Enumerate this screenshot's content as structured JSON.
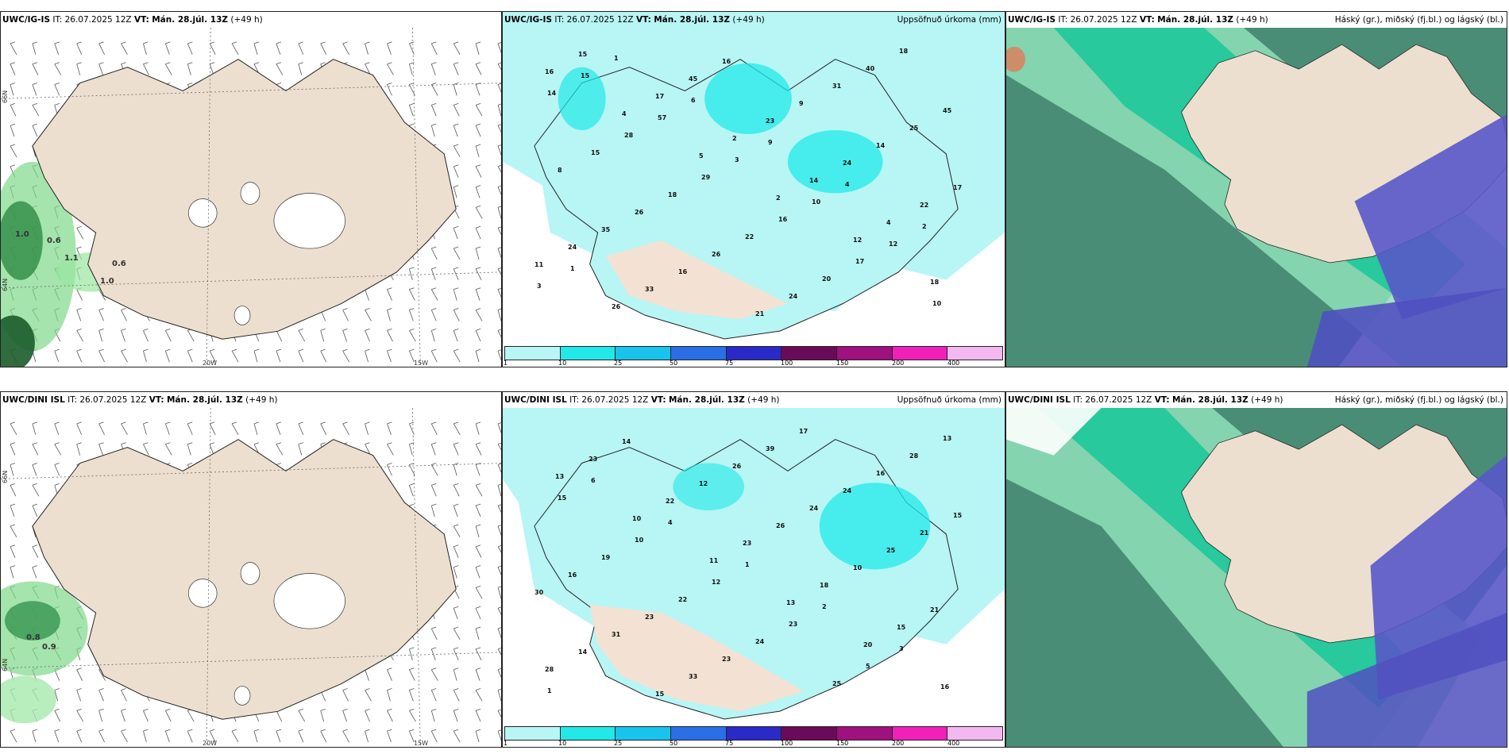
{
  "rows": [
    {
      "wind_title_model": "UWC/IG-IS",
      "precip_title_model": "UWC/IG-IS",
      "cloud_title_model": "UWC/IG-IS",
      "it": "IT: 26.07.2025 12Z",
      "vt_label": "VT:",
      "vt": "Mán. 28.júl. 13Z",
      "lead": "(+49 h)",
      "wind_values": [
        "1.0",
        "0.6",
        "1.1",
        "0.6",
        "1.0"
      ]
    },
    {
      "wind_title_model": "UWC/DINI ISL",
      "precip_title_model": "UWC/DINI ISL",
      "cloud_title_model": "UWC/DINI ISL",
      "it": "IT: 26.07.2025 12Z",
      "vt_label": "VT:",
      "vt": "Mán. 28.júl. 13Z",
      "lead": "(+49 h)",
      "wind_values": [
        "0.8",
        "0.9"
      ]
    }
  ],
  "precip_label": "Uppsöfnuð úrkoma (mm)",
  "cloud_label": "Háský (gr.), miðský (fj.bl.) og lágský (bl.)",
  "axis": {
    "lat_66": "66N",
    "lat_64": "64N",
    "lon_20": "20W",
    "lon_15": "15W"
  },
  "colorbar": {
    "ticks": [
      "1",
      "10",
      "25",
      "50",
      "75",
      "100",
      "150",
      "200",
      "400"
    ],
    "colors": [
      "#b8f5f5",
      "#22e8e8",
      "#18c4ec",
      "#2a6ee8",
      "#2a2ac8",
      "#6a0a5a",
      "#a0107e",
      "#f020b8",
      "#f4b8f0"
    ]
  },
  "precip_values_top": [
    "16",
    "4",
    "5",
    "2",
    "12",
    "18",
    "15",
    "17",
    "2",
    "14",
    "4",
    "11",
    "26",
    "45",
    "23",
    "24",
    "22",
    "24",
    "33",
    "16",
    "9",
    "14",
    "17",
    "35",
    "16",
    "21",
    "31",
    "25",
    "8",
    "26",
    "26",
    "24",
    "40",
    "45",
    "15",
    "18",
    "22",
    "20",
    "18",
    "14",
    "28",
    "29",
    "16",
    "17",
    "10",
    "15",
    "57",
    "3",
    "10",
    "12",
    "3",
    "1",
    "6",
    "9",
    "4",
    "2",
    "1"
  ],
  "precip_values_bottom": [
    "13",
    "10",
    "11",
    "13",
    "20",
    "16",
    "23",
    "22",
    "23",
    "18",
    "15",
    "28",
    "14",
    "12",
    "26",
    "10",
    "21",
    "14",
    "15",
    "26",
    "24",
    "25",
    "30",
    "31",
    "33",
    "39",
    "24",
    "21",
    "16",
    "23",
    "23",
    "17",
    "16",
    "15",
    "19",
    "22",
    "24",
    "25",
    "28",
    "15",
    "10",
    "12",
    "23",
    "5",
    "13",
    "6",
    "4",
    "1",
    "2",
    "3",
    "1"
  ]
}
